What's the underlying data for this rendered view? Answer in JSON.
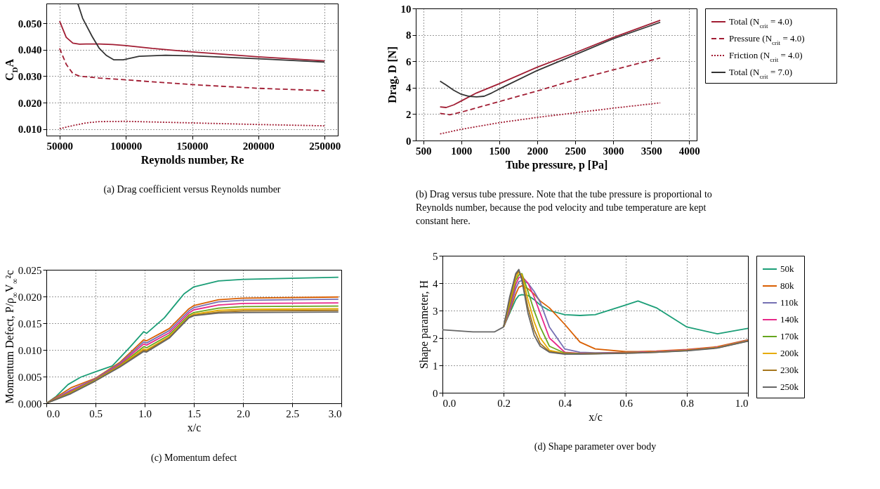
{
  "chart_data": [
    {
      "type": "line",
      "title": "(a) Drag coefficient versus Reynolds number",
      "xlabel": "Reynolds number, Re",
      "ylabel": "C$_{D}$A",
      "xlim": [
        40000,
        260000
      ],
      "ylim": [
        0.0075,
        0.0575
      ],
      "xticks": [
        50000,
        100000,
        150000,
        200000,
        250000
      ],
      "yticks": [
        {
          "value": 0.01,
          "label": "0.010"
        },
        {
          "value": 0.02,
          "label": "0.020"
        },
        {
          "value": 0.03,
          "label": "0.030"
        },
        {
          "value": 0.04,
          "label": "0.040"
        },
        {
          "value": 0.05,
          "label": "0.050"
        }
      ],
      "grid": true,
      "series": [
        {
          "color": "#a11d33",
          "line_style": "solid",
          "x": [
            50000,
            55000,
            60000,
            65000,
            70000,
            80000,
            90000,
            100000,
            120000,
            150000,
            200000,
            250000
          ],
          "values": [
            0.0508,
            0.0447,
            0.0425,
            0.0421,
            0.0422,
            0.0422,
            0.042,
            0.0416,
            0.0405,
            0.0392,
            0.0373,
            0.0358
          ]
        },
        {
          "color": "#a11d33",
          "line_style": "dashed",
          "x": [
            50000,
            55000,
            60000,
            65000,
            80000,
            100000,
            150000,
            200000,
            250000
          ],
          "values": [
            0.0405,
            0.0345,
            0.031,
            0.03,
            0.0293,
            0.0286,
            0.0268,
            0.0254,
            0.0245
          ]
        },
        {
          "color": "#a11d33",
          "line_style": "dotted",
          "x": [
            50000,
            60000,
            70000,
            80000,
            100000,
            150000,
            200000,
            250000
          ],
          "values": [
            0.0101,
            0.0113,
            0.0123,
            0.0128,
            0.0129,
            0.0123,
            0.0117,
            0.0112
          ]
        },
        {
          "color": "#333333",
          "line_style": "solid",
          "x": [
            63800,
            67400,
            74600,
            80000,
            85400,
            90800,
            98000,
            110000,
            130000,
            150000,
            200000,
            250000
          ],
          "values": [
            0.0574,
            0.0519,
            0.045,
            0.0405,
            0.0378,
            0.0362,
            0.0362,
            0.0375,
            0.0379,
            0.0377,
            0.0366,
            0.0353
          ]
        }
      ]
    },
    {
      "type": "line",
      "title": "(b) Drag versus tube pressure. Note that the tube pressure is proportional to Reynolds number, because the pod velocity and tube temperature are kept constant here.",
      "xlabel": "Tube pressure, p [Pa]",
      "ylabel": "Drag, D [N]",
      "xlim": [
        400,
        4100
      ],
      "ylim": [
        0,
        10
      ],
      "xticks": [
        500,
        1000,
        1500,
        2000,
        2500,
        3000,
        3500,
        4000
      ],
      "yticks": [
        0,
        2,
        4,
        6,
        8,
        10
      ],
      "grid": true,
      "legend": "right",
      "series": [
        {
          "name": "Total (N$_{crit}$ = 4.0)",
          "color": "#a11d33",
          "line_style": "solid",
          "x": [
            720,
            800,
            900,
            1000,
            1200,
            1500,
            2000,
            2500,
            3000,
            3620
          ],
          "values": [
            2.55,
            2.5,
            2.7,
            3.0,
            3.6,
            4.3,
            5.55,
            6.65,
            7.8,
            9.1
          ]
        },
        {
          "name": "Pressure (N$_{crit}$ = 4.0)",
          "color": "#a11d33",
          "line_style": "dashed",
          "x": [
            720,
            850,
            1000,
            1500,
            2000,
            2500,
            3000,
            3620
          ],
          "values": [
            2.05,
            1.95,
            2.15,
            2.95,
            3.75,
            4.6,
            5.35,
            6.25
          ]
        },
        {
          "name": "Friction (N$_{crit}$ = 4.0)",
          "color": "#a11d33",
          "line_style": "dotted",
          "x": [
            720,
            1000,
            1500,
            2000,
            2500,
            3000,
            3620
          ],
          "values": [
            0.5,
            0.85,
            1.35,
            1.75,
            2.1,
            2.45,
            2.85
          ]
        },
        {
          "name": "Total (N$_{crit}$ = 7.0)",
          "color": "#333333",
          "line_style": "solid",
          "x": [
            720,
            800,
            900,
            1000,
            1100,
            1200,
            1300,
            1400,
            1500,
            2000,
            2500,
            3000,
            3620
          ],
          "values": [
            4.5,
            4.2,
            3.8,
            3.5,
            3.35,
            3.3,
            3.35,
            3.6,
            3.9,
            5.3,
            6.5,
            7.7,
            8.95
          ]
        }
      ]
    },
    {
      "type": "line",
      "title": "(c) Momentum defect",
      "xlabel": "x/c",
      "ylabel": "Momentum Defect, P/ρ$_{∞}$V$_{∞}$²c",
      "xlim": [
        0,
        3
      ],
      "ylim": [
        0,
        0.025
      ],
      "xticks": [
        {
          "value": 0,
          "label": "0.0"
        },
        {
          "value": 0.5,
          "label": "0.5"
        },
        {
          "value": 1,
          "label": "1.0"
        },
        {
          "value": 1.5,
          "label": "1.5"
        },
        {
          "value": 2,
          "label": "2.0"
        },
        {
          "value": 2.5,
          "label": "2.5"
        },
        {
          "value": 3,
          "label": "3.0"
        }
      ],
      "yticks": [
        {
          "value": 0,
          "label": "0.000"
        },
        {
          "value": 0.005,
          "label": "0.005"
        },
        {
          "value": 0.01,
          "label": "0.010"
        },
        {
          "value": 0.015,
          "label": "0.015"
        },
        {
          "value": 0.02,
          "label": "0.020"
        },
        {
          "value": 0.025,
          "label": "0.025"
        }
      ],
      "grid": true,
      "x": [
        0,
        0.25,
        0.5,
        0.75,
        0.99,
        1.02,
        1.25,
        1.45,
        1.5,
        1.75,
        2.0,
        2.97
      ],
      "series": [
        {
          "color": "#1b9e77",
          "x": [
            0,
            0.1,
            0.22,
            0.35,
            0.5,
            0.67,
            0.85,
            0.99,
            1.02,
            1.2,
            1.4,
            1.5,
            1.75,
            2.0,
            2.97
          ],
          "values": [
            0,
            0.0013,
            0.0035,
            0.0049,
            0.0059,
            0.007,
            0.0105,
            0.0134,
            0.0131,
            0.016,
            0.0205,
            0.0218,
            0.0229,
            0.0232,
            0.0236
          ]
        },
        {
          "color": "#d95f02",
          "values": [
            0,
            0.0029,
            0.0047,
            0.0077,
            0.0119,
            0.0117,
            0.014,
            0.0177,
            0.0183,
            0.0194,
            0.0197,
            0.0199
          ]
        },
        {
          "color": "#7570b3",
          "values": [
            0,
            0.0025,
            0.0046,
            0.0075,
            0.0115,
            0.0113,
            0.0136,
            0.0173,
            0.0179,
            0.019,
            0.0193,
            0.0195
          ]
        },
        {
          "color": "#e7298a",
          "values": [
            0,
            0.0023,
            0.0045,
            0.0073,
            0.0111,
            0.0109,
            0.0132,
            0.0169,
            0.0175,
            0.0184,
            0.0187,
            0.0188
          ]
        },
        {
          "color": "#66a61e",
          "values": [
            0,
            0.0021,
            0.0044,
            0.0071,
            0.0106,
            0.0104,
            0.0128,
            0.0165,
            0.017,
            0.0178,
            0.0181,
            0.0182
          ]
        },
        {
          "color": "#e6ab02",
          "values": [
            0,
            0.002,
            0.0043,
            0.007,
            0.0102,
            0.01,
            0.0125,
            0.0162,
            0.0167,
            0.0174,
            0.0176,
            0.0177
          ]
        },
        {
          "color": "#a6761d",
          "values": [
            0,
            0.0019,
            0.0042,
            0.0069,
            0.0099,
            0.0098,
            0.0123,
            0.0161,
            0.0165,
            0.0171,
            0.0173,
            0.0174
          ]
        },
        {
          "color": "#666666",
          "values": [
            0,
            0.0018,
            0.0042,
            0.0068,
            0.0097,
            0.0096,
            0.0122,
            0.016,
            0.0164,
            0.0169,
            0.017,
            0.0171
          ]
        }
      ]
    },
    {
      "type": "line",
      "title": "(d) Shape parameter over body",
      "xlabel": "x/c",
      "ylabel": "Shape parameter, H",
      "xlim": [
        0,
        1
      ],
      "ylim": [
        0,
        5
      ],
      "xticks": [
        {
          "value": 0,
          "label": "0.0"
        },
        {
          "value": 0.2,
          "label": "0.2"
        },
        {
          "value": 0.4,
          "label": "0.4"
        },
        {
          "value": 0.6,
          "label": "0.6"
        },
        {
          "value": 0.8,
          "label": "0.8"
        },
        {
          "value": 1,
          "label": "1.0"
        }
      ],
      "yticks": [
        0,
        1,
        2,
        3,
        4,
        5
      ],
      "grid": true,
      "legend": "right",
      "x": [
        0,
        0.1,
        0.17,
        0.2,
        0.22,
        0.24,
        0.25,
        0.26,
        0.28,
        0.3,
        0.32,
        0.35,
        0.4,
        0.45,
        0.5,
        0.6,
        0.64,
        0.7,
        0.8,
        0.9,
        1.0
      ],
      "series": [
        {
          "name": "50k",
          "color": "#1b9e77",
          "values": [
            null,
            null,
            null,
            2.4,
            2.9,
            3.4,
            3.55,
            3.58,
            3.55,
            3.4,
            3.2,
            3.0,
            2.85,
            2.82,
            2.85,
            3.2,
            3.35,
            3.1,
            2.4,
            2.15,
            2.35
          ]
        },
        {
          "name": "80k",
          "color": "#d95f02",
          "values": [
            null,
            null,
            null,
            2.4,
            2.95,
            3.6,
            3.85,
            3.9,
            3.8,
            3.6,
            3.35,
            3.1,
            2.5,
            1.85,
            1.6,
            1.5,
            1.5,
            1.52,
            1.58,
            1.68,
            1.93
          ]
        },
        {
          "name": "110k",
          "color": "#7570b3",
          "values": [
            null,
            null,
            null,
            2.4,
            3.0,
            3.8,
            4.05,
            4.1,
            4.0,
            3.7,
            3.3,
            2.4,
            1.6,
            1.48,
            1.46,
            1.47,
            1.48,
            1.5,
            1.56,
            1.66,
            1.92
          ]
        },
        {
          "name": "140k",
          "color": "#e7298a",
          "values": [
            null,
            null,
            null,
            2.4,
            3.1,
            3.95,
            4.2,
            4.25,
            4.0,
            3.5,
            2.9,
            2.0,
            1.48,
            1.44,
            1.44,
            1.46,
            1.47,
            1.5,
            1.56,
            1.66,
            1.91
          ]
        },
        {
          "name": "170k",
          "color": "#66a61e",
          "values": [
            null,
            null,
            null,
            2.4,
            3.2,
            4.1,
            4.3,
            4.35,
            3.7,
            3.0,
            2.4,
            1.7,
            1.45,
            1.43,
            null,
            null,
            null,
            null,
            null,
            null,
            null
          ]
        },
        {
          "name": "200k",
          "color": "#e6ab02",
          "values": [
            null,
            null,
            null,
            2.4,
            3.3,
            4.2,
            4.4,
            4.3,
            3.4,
            2.6,
            2.0,
            1.55,
            1.43,
            1.42,
            1.43,
            1.45,
            1.46,
            1.49,
            1.55,
            1.65,
            1.9
          ]
        },
        {
          "name": "230k",
          "color": "#a6761d",
          "values": [
            null,
            null,
            null,
            2.4,
            3.4,
            4.3,
            4.45,
            4.2,
            3.1,
            2.3,
            1.8,
            1.5,
            1.42,
            1.42,
            1.43,
            1.45,
            1.46,
            1.48,
            1.54,
            1.64,
            1.89
          ]
        },
        {
          "name": "250k",
          "color": "#666666",
          "values": [
            2.3,
            2.22,
            2.22,
            2.4,
            3.5,
            4.35,
            4.5,
            4.1,
            2.9,
            2.1,
            1.7,
            1.48,
            1.41,
            1.41,
            1.42,
            1.44,
            1.45,
            1.48,
            1.53,
            1.63,
            1.88
          ]
        }
      ]
    }
  ]
}
